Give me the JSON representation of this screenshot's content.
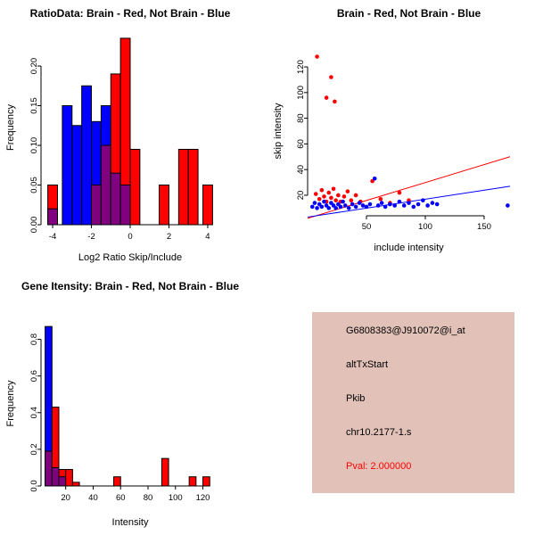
{
  "colors": {
    "red": "#ff0000",
    "blue": "#0000ff",
    "overlap": "#800080",
    "axis": "#000000",
    "info_bg": "#e2c2b8",
    "pval": "#ff0000"
  },
  "info_box": {
    "lines": [
      "G6808383@J910072@i_at",
      "altTxStart",
      "Pkib",
      "chr10.2177-1.s"
    ],
    "pval_line": "Pval: 2.000000"
  },
  "chart_data": [
    {
      "type": "bar",
      "subtype": "overlaid-histogram",
      "title": "RatioData: Brain - Red, Not Brain - Blue",
      "xlabel": "Log2 Ratio Skip/Include",
      "ylabel": "Frequency",
      "xlim": [
        -4.6,
        4.6
      ],
      "ylim": [
        0,
        0.245
      ],
      "xticks": [
        -4,
        -2,
        0,
        2,
        4
      ],
      "xtick_labels": [
        "-4",
        "-2",
        "0",
        "2",
        "4"
      ],
      "yticks": [
        0,
        0.05,
        0.1,
        0.15,
        0.2
      ],
      "ytick_labels": [
        "0.00",
        "0.05",
        "0.10",
        "0.15",
        "0.20"
      ],
      "bin_width": 0.5,
      "legend": [
        {
          "label": "Brain",
          "color": "red"
        },
        {
          "label": "Not Brain",
          "color": "blue"
        }
      ],
      "bins": [
        {
          "x0": -4.25,
          "red": 0.05,
          "blue": 0.02
        },
        {
          "x0": -3.5,
          "red": 0,
          "blue": 0.15
        },
        {
          "x0": -3.0,
          "red": 0,
          "blue": 0.125
        },
        {
          "x0": -2.5,
          "red": 0,
          "blue": 0.175
        },
        {
          "x0": -2.0,
          "red": 0.05,
          "blue": 0.13
        },
        {
          "x0": -1.5,
          "red": 0.1,
          "blue": 0.15
        },
        {
          "x0": -1.0,
          "red": 0.19,
          "blue": 0.065
        },
        {
          "x0": -0.5,
          "red": 0.235,
          "blue": 0.05
        },
        {
          "x0": 0.0,
          "red": 0.095,
          "blue": 0
        },
        {
          "x0": 1.5,
          "red": 0.05,
          "blue": 0
        },
        {
          "x0": 2.5,
          "red": 0.095,
          "blue": 0
        },
        {
          "x0": 3.0,
          "red": 0.095,
          "blue": 0
        },
        {
          "x0": 3.75,
          "red": 0.05,
          "blue": 0
        }
      ]
    },
    {
      "type": "scatter",
      "title": "Brain - Red, Not Brain - Blue",
      "xlabel": "include intensity",
      "ylabel": "skip intensity",
      "xlim": [
        0,
        172
      ],
      "ylim": [
        4,
        136
      ],
      "xticks": [
        50,
        100,
        150
      ],
      "xtick_labels": [
        "50",
        "100",
        "150"
      ],
      "yticks": [
        20,
        40,
        60,
        80,
        100,
        120
      ],
      "ytick_labels": [
        "20",
        "40",
        "60",
        "80",
        "100",
        "120"
      ],
      "series": [
        {
          "name": "Brain",
          "color": "red",
          "points": [
            [
              8,
              128
            ],
            [
              20,
              112
            ],
            [
              16,
              96
            ],
            [
              23,
              93
            ],
            [
              7,
              21
            ],
            [
              10,
              17
            ],
            [
              12,
              24
            ],
            [
              14,
              19
            ],
            [
              16,
              15
            ],
            [
              18,
              22
            ],
            [
              20,
              18
            ],
            [
              22,
              25
            ],
            [
              24,
              16
            ],
            [
              26,
              20
            ],
            [
              28,
              15
            ],
            [
              31,
              19
            ],
            [
              34,
              23
            ],
            [
              37,
              16
            ],
            [
              41,
              20
            ],
            [
              45,
              15
            ],
            [
              55,
              31
            ],
            [
              62,
              17
            ],
            [
              70,
              14
            ],
            [
              78,
              22
            ],
            [
              86,
              16
            ]
          ]
        },
        {
          "name": "Not Brain",
          "color": "blue",
          "points": [
            [
              4,
              11
            ],
            [
              6,
              14
            ],
            [
              8,
              10
            ],
            [
              10,
              13
            ],
            [
              12,
              11
            ],
            [
              14,
              15
            ],
            [
              16,
              12
            ],
            [
              18,
              10
            ],
            [
              20,
              14
            ],
            [
              22,
              12
            ],
            [
              24,
              10
            ],
            [
              26,
              13
            ],
            [
              28,
              11
            ],
            [
              30,
              15
            ],
            [
              32,
              12
            ],
            [
              35,
              10
            ],
            [
              38,
              13
            ],
            [
              41,
              11
            ],
            [
              44,
              14
            ],
            [
              47,
              12
            ],
            [
              50,
              11
            ],
            [
              53,
              13
            ],
            [
              57,
              33
            ],
            [
              60,
              12
            ],
            [
              63,
              14
            ],
            [
              66,
              11
            ],
            [
              70,
              13
            ],
            [
              74,
              12
            ],
            [
              78,
              15
            ],
            [
              82,
              12
            ],
            [
              86,
              14
            ],
            [
              90,
              11
            ],
            [
              94,
              13
            ],
            [
              98,
              16
            ],
            [
              102,
              12
            ],
            [
              106,
              14
            ],
            [
              110,
              13
            ],
            [
              170,
              12
            ]
          ]
        }
      ],
      "lines": [
        {
          "name": "brain-fit-line",
          "color": "red",
          "x": [
            0,
            172
          ],
          "y": [
            2,
            50
          ]
        },
        {
          "name": "notbrain-fit-line",
          "color": "blue",
          "x": [
            0,
            172
          ],
          "y": [
            3,
            27
          ]
        }
      ]
    },
    {
      "type": "bar",
      "subtype": "overlaid-histogram",
      "title": "Gene Itensity: Brain - Red, Not Brain - Blue",
      "xlabel": "Intensity",
      "ylabel": "Frequency",
      "xlim": [
        2,
        132
      ],
      "ylim": [
        0,
        0.9
      ],
      "xticks": [
        20,
        40,
        60,
        80,
        100,
        120
      ],
      "xtick_labels": [
        "20",
        "40",
        "60",
        "80",
        "100",
        "120"
      ],
      "yticks": [
        0,
        0.2,
        0.4,
        0.6,
        0.8
      ],
      "ytick_labels": [
        "0.0",
        "0.2",
        "0.4",
        "0.6",
        "0.8"
      ],
      "bin_width": 5,
      "legend": [
        {
          "label": "Brain",
          "color": "red"
        },
        {
          "label": "Not Brain",
          "color": "blue"
        }
      ],
      "bins": [
        {
          "x0": 5,
          "red": 0.19,
          "blue": 0.87
        },
        {
          "x0": 10,
          "red": 0.43,
          "blue": 0.1
        },
        {
          "x0": 15,
          "red": 0.09,
          "blue": 0.05
        },
        {
          "x0": 20,
          "red": 0.09,
          "blue": 0
        },
        {
          "x0": 25,
          "red": 0.02,
          "blue": 0
        },
        {
          "x0": 55,
          "red": 0.05,
          "blue": 0
        },
        {
          "x0": 90,
          "red": 0.15,
          "blue": 0
        },
        {
          "x0": 110,
          "red": 0.05,
          "blue": 0
        },
        {
          "x0": 120,
          "red": 0.05,
          "blue": 0
        }
      ]
    }
  ]
}
